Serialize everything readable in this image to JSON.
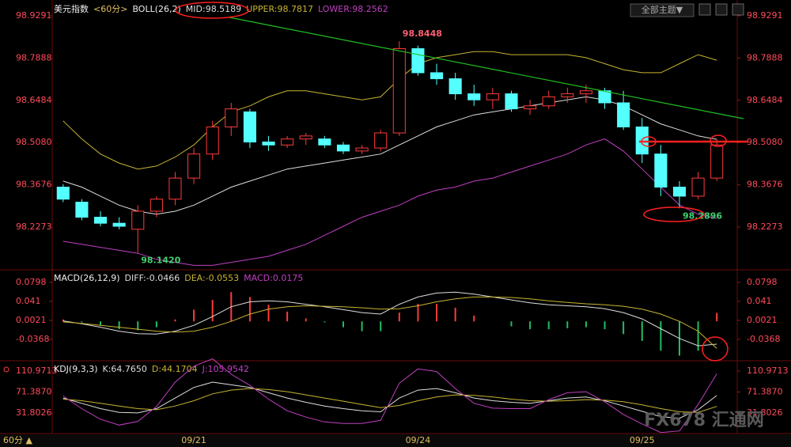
{
  "chart_data": [
    {
      "type": "candlestick",
      "title": "美元指数",
      "subtitle": "<60分>",
      "indicator": "BOLL(26,2)",
      "categories": [
        null,
        null,
        null,
        null,
        null,
        null,
        null,
        "09/21",
        null,
        null,
        null,
        null,
        null,
        null,
        null,
        null,
        null,
        null,
        null,
        "09/24",
        null,
        null,
        null,
        null,
        null,
        null,
        null,
        null,
        null,
        null,
        null,
        "09/25",
        null,
        null,
        null,
        null
      ],
      "candles": {
        "open": [
          98.36,
          98.31,
          98.26,
          98.24,
          98.22,
          98.28,
          98.32,
          98.39,
          98.47,
          98.56,
          98.61,
          98.51,
          98.5,
          98.52,
          98.52,
          98.5,
          98.48,
          98.49,
          98.54,
          98.82,
          98.74,
          98.72,
          98.67,
          98.65,
          98.67,
          98.62,
          98.63,
          98.66,
          98.67,
          98.68,
          98.64,
          98.56,
          98.47,
          98.36,
          98.33,
          98.39
        ],
        "high": [
          98.37,
          98.32,
          98.28,
          98.26,
          98.3,
          98.33,
          98.41,
          98.49,
          98.58,
          98.64,
          98.62,
          98.53,
          98.53,
          98.54,
          98.53,
          98.51,
          98.5,
          98.55,
          98.8448,
          98.83,
          98.77,
          98.74,
          98.7,
          98.69,
          98.68,
          98.65,
          98.68,
          98.69,
          98.7,
          98.69,
          98.68,
          98.59,
          98.5,
          98.38,
          98.41,
          98.52
        ],
        "low": [
          98.31,
          98.25,
          98.23,
          98.22,
          98.142,
          98.26,
          98.3,
          98.37,
          98.45,
          98.53,
          98.49,
          98.48,
          98.49,
          98.5,
          98.49,
          98.47,
          98.47,
          98.48,
          98.53,
          98.73,
          98.7,
          98.65,
          98.63,
          98.62,
          98.61,
          98.6,
          98.62,
          98.64,
          98.64,
          98.62,
          98.55,
          98.44,
          98.33,
          98.2896,
          98.32,
          98.38
        ],
        "close": [
          98.32,
          98.26,
          98.24,
          98.23,
          98.28,
          98.32,
          98.39,
          98.47,
          98.56,
          98.62,
          98.51,
          98.5,
          98.52,
          98.53,
          98.5,
          98.48,
          98.49,
          98.54,
          98.82,
          98.74,
          98.72,
          98.67,
          98.65,
          98.67,
          98.62,
          98.63,
          98.66,
          98.67,
          98.68,
          98.64,
          98.56,
          98.47,
          98.36,
          98.33,
          98.39,
          98.5
        ]
      },
      "up_color": "#ff3b3b",
      "down_color": "#54ffff",
      "series": [
        {
          "name": "MID:98.5189",
          "color": "#dddddd",
          "values": [
            98.38,
            98.36,
            98.33,
            98.3,
            98.28,
            98.27,
            98.28,
            98.3,
            98.33,
            98.36,
            98.38,
            98.4,
            98.42,
            98.43,
            98.44,
            98.45,
            98.46,
            98.47,
            98.5,
            98.53,
            98.56,
            98.58,
            98.6,
            98.61,
            98.62,
            98.63,
            98.64,
            98.65,
            98.66,
            98.65,
            98.63,
            98.6,
            98.57,
            98.55,
            98.53,
            98.5189
          ]
        },
        {
          "name": "UPPER:98.7817",
          "color": "#c8b432",
          "values": [
            98.58,
            98.52,
            98.47,
            98.44,
            98.42,
            98.43,
            98.46,
            98.5,
            98.56,
            98.61,
            98.63,
            98.66,
            98.68,
            98.68,
            98.67,
            98.66,
            98.65,
            98.66,
            98.72,
            98.77,
            98.79,
            98.8,
            98.81,
            98.81,
            98.8,
            98.8,
            98.8,
            98.8,
            98.79,
            98.77,
            98.75,
            98.74,
            98.74,
            98.77,
            98.8,
            98.7817
          ]
        },
        {
          "name": "LOWER:98.2562",
          "color": "#c040c0",
          "values": [
            98.18,
            98.17,
            98.16,
            98.15,
            98.14,
            98.12,
            98.11,
            98.1,
            98.1,
            98.11,
            98.12,
            98.13,
            98.15,
            98.17,
            98.2,
            98.23,
            98.26,
            98.28,
            98.3,
            98.33,
            98.35,
            98.36,
            98.38,
            98.39,
            98.41,
            98.43,
            98.45,
            98.47,
            98.5,
            98.52,
            98.48,
            98.42,
            98.36,
            98.3,
            98.27,
            98.2562
          ]
        }
      ],
      "annotations": [
        {
          "label": "98.8448",
          "value": 98.8448,
          "color": "#ff6070"
        },
        {
          "label": "98.1420",
          "value": 98.142,
          "color": "#40d070"
        },
        {
          "label": "98.2896",
          "value": 98.2896,
          "color": "#40d070"
        }
      ],
      "ylim": [
        98.088,
        98.9685
      ],
      "yticks": [
        {
          "value": 98.9291,
          "label": "98.9291"
        },
        {
          "value": 98.7888,
          "label": "98.7888"
        },
        {
          "value": 98.6484,
          "label": "98.6484"
        },
        {
          "value": 98.508,
          "label": "98.5080"
        },
        {
          "value": 98.3676,
          "label": "98.3676"
        },
        {
          "value": 98.2273,
          "label": "98.2273"
        }
      ]
    },
    {
      "type": "macd",
      "indicator": "MACD(26,12,9)",
      "series": [
        {
          "name": "DIFF:-0.0466",
          "color": "#dddddd",
          "values": [
            0.001,
            -0.005,
            -0.012,
            -0.02,
            -0.025,
            -0.026,
            -0.02,
            -0.008,
            0.01,
            0.03,
            0.04,
            0.042,
            0.04,
            0.035,
            0.03,
            0.024,
            0.018,
            0.015,
            0.035,
            0.05,
            0.058,
            0.06,
            0.056,
            0.05,
            0.044,
            0.038,
            0.034,
            0.032,
            0.03,
            0.026,
            0.018,
            0.005,
            -0.015,
            -0.035,
            -0.05,
            -0.0466
          ]
        },
        {
          "name": "DEA:-0.0553",
          "color": "#c8b432",
          "values": [
            -0.001,
            -0.004,
            -0.008,
            -0.012,
            -0.016,
            -0.02,
            -0.022,
            -0.02,
            -0.012,
            0,
            0.015,
            0.025,
            0.03,
            0.032,
            0.031,
            0.03,
            0.028,
            0.025,
            0.026,
            0.032,
            0.04,
            0.046,
            0.05,
            0.05,
            0.049,
            0.046,
            0.042,
            0.039,
            0.036,
            0.034,
            0.031,
            0.025,
            0.015,
            0,
            -0.02,
            -0.0553
          ]
        }
      ],
      "bars": {
        "name": "MACD:0.0175",
        "color": "#c040c0",
        "pos_color": "#ff3b3b",
        "neg_color": "#20c060",
        "values": [
          0.004,
          -0.002,
          -0.008,
          -0.016,
          -0.018,
          -0.012,
          0.004,
          0.024,
          0.044,
          0.06,
          0.05,
          0.034,
          0.02,
          0.006,
          -0.002,
          -0.012,
          -0.02,
          -0.02,
          0.018,
          0.036,
          0.036,
          0.028,
          0.012,
          0,
          -0.01,
          -0.016,
          -0.016,
          -0.014,
          -0.012,
          -0.016,
          -0.026,
          -0.04,
          -0.06,
          -0.07,
          -0.06,
          0.0175
        ]
      },
      "ylim": [
        -0.079,
        0.0992
      ],
      "yticks": [
        0.0798,
        0.041,
        0.0021,
        -0.0368
      ]
    },
    {
      "type": "line",
      "indicator": "KDJ(9,3,3)",
      "series": [
        {
          "name": "K:64.7650",
          "color": "#dddddd",
          "values": [
            60,
            50,
            40,
            33,
            32,
            40,
            60,
            80,
            90,
            85,
            80,
            70,
            60,
            52,
            45,
            40,
            36,
            34,
            60,
            75,
            78,
            70,
            60,
            55,
            52,
            50,
            55,
            60,
            62,
            55,
            45,
            35,
            25,
            22,
            38,
            64.765
          ]
        },
        {
          "name": "D:44.1704",
          "color": "#c8b432",
          "values": [
            58,
            55,
            50,
            45,
            40,
            38,
            45,
            55,
            68,
            75,
            78,
            76,
            72,
            66,
            60,
            54,
            48,
            42,
            46,
            55,
            62,
            66,
            65,
            62,
            58,
            55,
            54,
            55,
            57,
            56,
            53,
            47,
            40,
            34,
            33,
            44.1704
          ]
        },
        {
          "name": "J:105.9542",
          "color": "#c040c0",
          "values": [
            64,
            40,
            20,
            9,
            16,
            44,
            90,
            120,
            134,
            105,
            84,
            58,
            36,
            24,
            15,
            12,
            12,
            18,
            88,
            115,
            110,
            78,
            50,
            41,
            40,
            40,
            57,
            70,
            72,
            53,
            29,
            11,
            -5,
            -2,
            48,
            105.9542
          ]
        }
      ],
      "ylim": [
        -7,
        124.4
      ],
      "yticks": [
        110.9713,
        {
          "value": 71.387,
          "label": "71.3870"
        },
        31.8026
      ]
    }
  ],
  "toolbar": {
    "theme_button": "全部主题▼"
  },
  "footer": {
    "period": "60分 ▲"
  },
  "watermark": "FX678 汇通网"
}
